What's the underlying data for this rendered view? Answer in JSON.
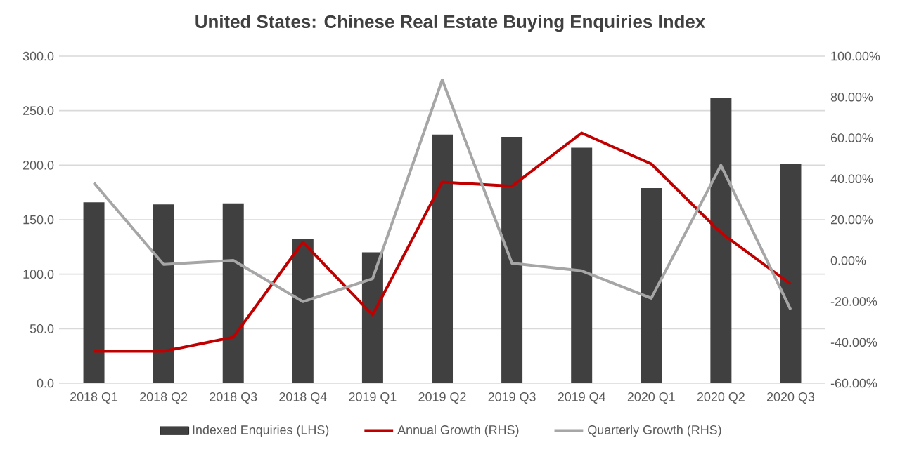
{
  "chart_data": {
    "type": "bar",
    "title": "United States: Chinese Real Estate Buying Enquiries Index",
    "categories": [
      "2018 Q1",
      "2018 Q2",
      "2018 Q3",
      "2018 Q4",
      "2019 Q1",
      "2019 Q2",
      "2019 Q3",
      "2019 Q4",
      "2020 Q1",
      "2020 Q2",
      "2020 Q3"
    ],
    "series": [
      {
        "name": "Indexed Enquiries (LHS)",
        "color": "#404040",
        "values": [
          166,
          164,
          165,
          132,
          120,
          228,
          226,
          216,
          179,
          262,
          201
        ]
      },
      {
        "name": "Annual Growth (RHS)",
        "type": "line",
        "axis": "y2",
        "color": "#c00000",
        "values": [
          -44.4,
          -44.4,
          -37.5,
          9.0,
          -26.6,
          38.4,
          36.4,
          62.4,
          47.3,
          13.6,
          -11.5
        ]
      },
      {
        "name": "Quarterly Growth (RHS)",
        "type": "line",
        "axis": "y2",
        "color": "#a6a6a6",
        "values": [
          38.0,
          -1.9,
          0.1,
          -20.1,
          -8.9,
          88.4,
          -1.3,
          -5.0,
          -18.4,
          46.6,
          -24.0
        ]
      }
    ],
    "ylim": [
      0,
      300
    ],
    "yticks": [
      {
        "value": 0,
        "label": "0.0"
      },
      {
        "value": 50,
        "label": "50.0"
      },
      {
        "value": 100,
        "label": "100.0"
      },
      {
        "value": 150,
        "label": "150.0"
      },
      {
        "value": 200,
        "label": "200.0"
      },
      {
        "value": 250,
        "label": "250.0"
      },
      {
        "value": 300,
        "label": "300.0"
      }
    ],
    "y2lim": [
      -60,
      100
    ],
    "y2ticks": [
      {
        "value": -60,
        "label": "-60.00%"
      },
      {
        "value": -40,
        "label": "-40.00%"
      },
      {
        "value": -20,
        "label": "-20.00%"
      },
      {
        "value": 0,
        "label": "0.00%"
      },
      {
        "value": 20,
        "label": "20.00%"
      },
      {
        "value": 40,
        "label": "40.00%"
      },
      {
        "value": 60,
        "label": "60.00%"
      },
      {
        "value": 80,
        "label": "80.00%"
      },
      {
        "value": 100,
        "label": "100.00%"
      }
    ],
    "grid": "y",
    "legend": "bottom"
  }
}
